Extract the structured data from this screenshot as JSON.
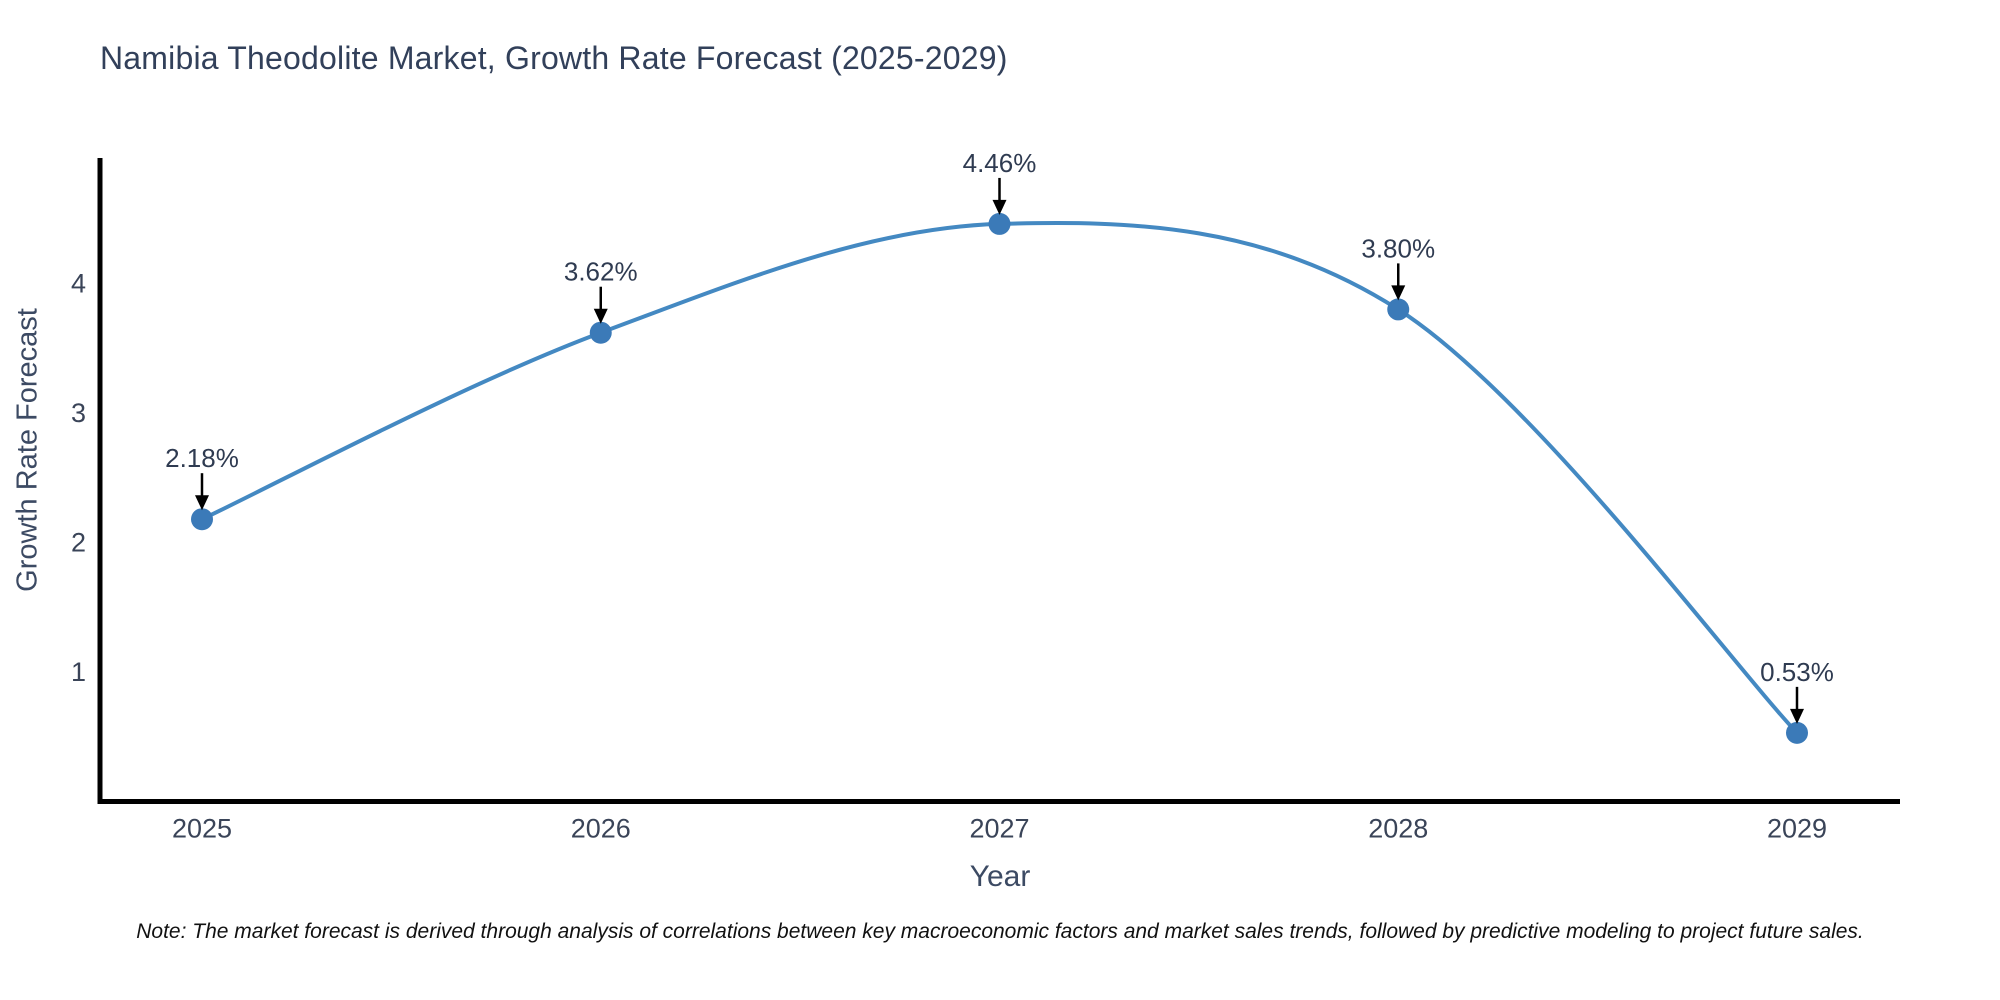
{
  "page": {
    "background": "#ffffff"
  },
  "chart_data": {
    "type": "line",
    "title": "Namibia Theodolite Market, Growth Rate Forecast (2025-2029)",
    "xlabel": "Year",
    "ylabel": "Growth Rate Forecast",
    "categories": [
      "2025",
      "2026",
      "2027",
      "2028",
      "2029"
    ],
    "series": [
      {
        "name": "Growth Rate Forecast",
        "values": [
          2.18,
          3.62,
          4.46,
          3.8,
          0.53
        ]
      }
    ],
    "point_labels": [
      "2.18%",
      "3.62%",
      "4.46%",
      "3.80%",
      "0.53%"
    ],
    "yticks": [
      1,
      2,
      3,
      4
    ],
    "ylim": [
      0,
      4.97
    ],
    "grid": false,
    "legend_position": "none",
    "line_smooth": true,
    "annotation_style": "value label with downward arrow to each point",
    "colors": {
      "line": "#4489c2",
      "marker": "#3b7ab8",
      "axis": "#000000",
      "tick_label": "#3a4458",
      "annotation_text": "#2f3b51",
      "arrow": "#000000",
      "title_text": "#32405a",
      "axis_title_text": "#3c4a63"
    }
  },
  "note": "Note: The market forecast is derived through analysis of correlations between key macroeconomic factors and market sales trends, followed by predictive modeling to project future sales."
}
